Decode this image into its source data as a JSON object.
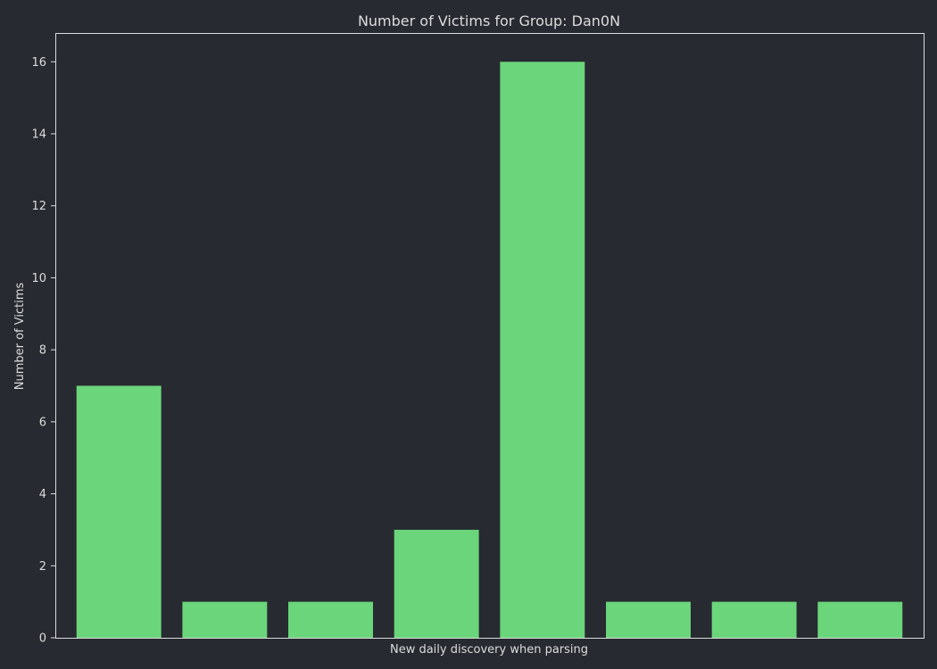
{
  "colors": {
    "background": "#272a30",
    "bar": "#6bd57b",
    "axis": "#dcdcdc",
    "text": "#dcdcdc"
  },
  "chart_data": {
    "type": "bar",
    "title": "Number of Victims for Group: Dan0N",
    "xlabel": "New daily discovery when parsing",
    "ylabel": "Number of Victims",
    "categories": [
      "",
      "",
      "",
      "",
      "",
      "",
      "",
      ""
    ],
    "values": [
      7,
      1,
      1,
      3,
      16,
      1,
      1,
      1
    ],
    "ylim": [
      0,
      16.8
    ],
    "yticks": [
      0,
      2,
      4,
      6,
      8,
      10,
      12,
      14,
      16
    ],
    "grid": false,
    "legend": "none"
  }
}
